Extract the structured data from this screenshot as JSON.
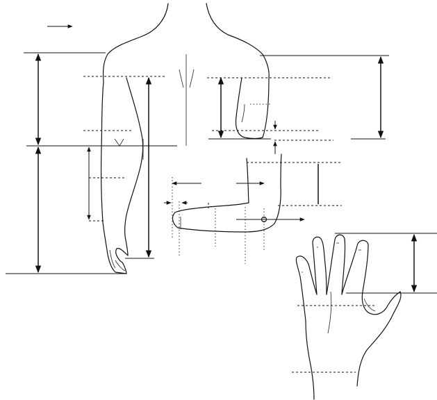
{
  "figure": {
    "kind": "anthropometric-measurement-illustration",
    "views": [
      "upper-body-back-view",
      "arm-side-view",
      "forearm-flexed-view",
      "hand-palm-view"
    ],
    "line_color": "#111111",
    "background": "#ffffff",
    "text_labels": []
  }
}
